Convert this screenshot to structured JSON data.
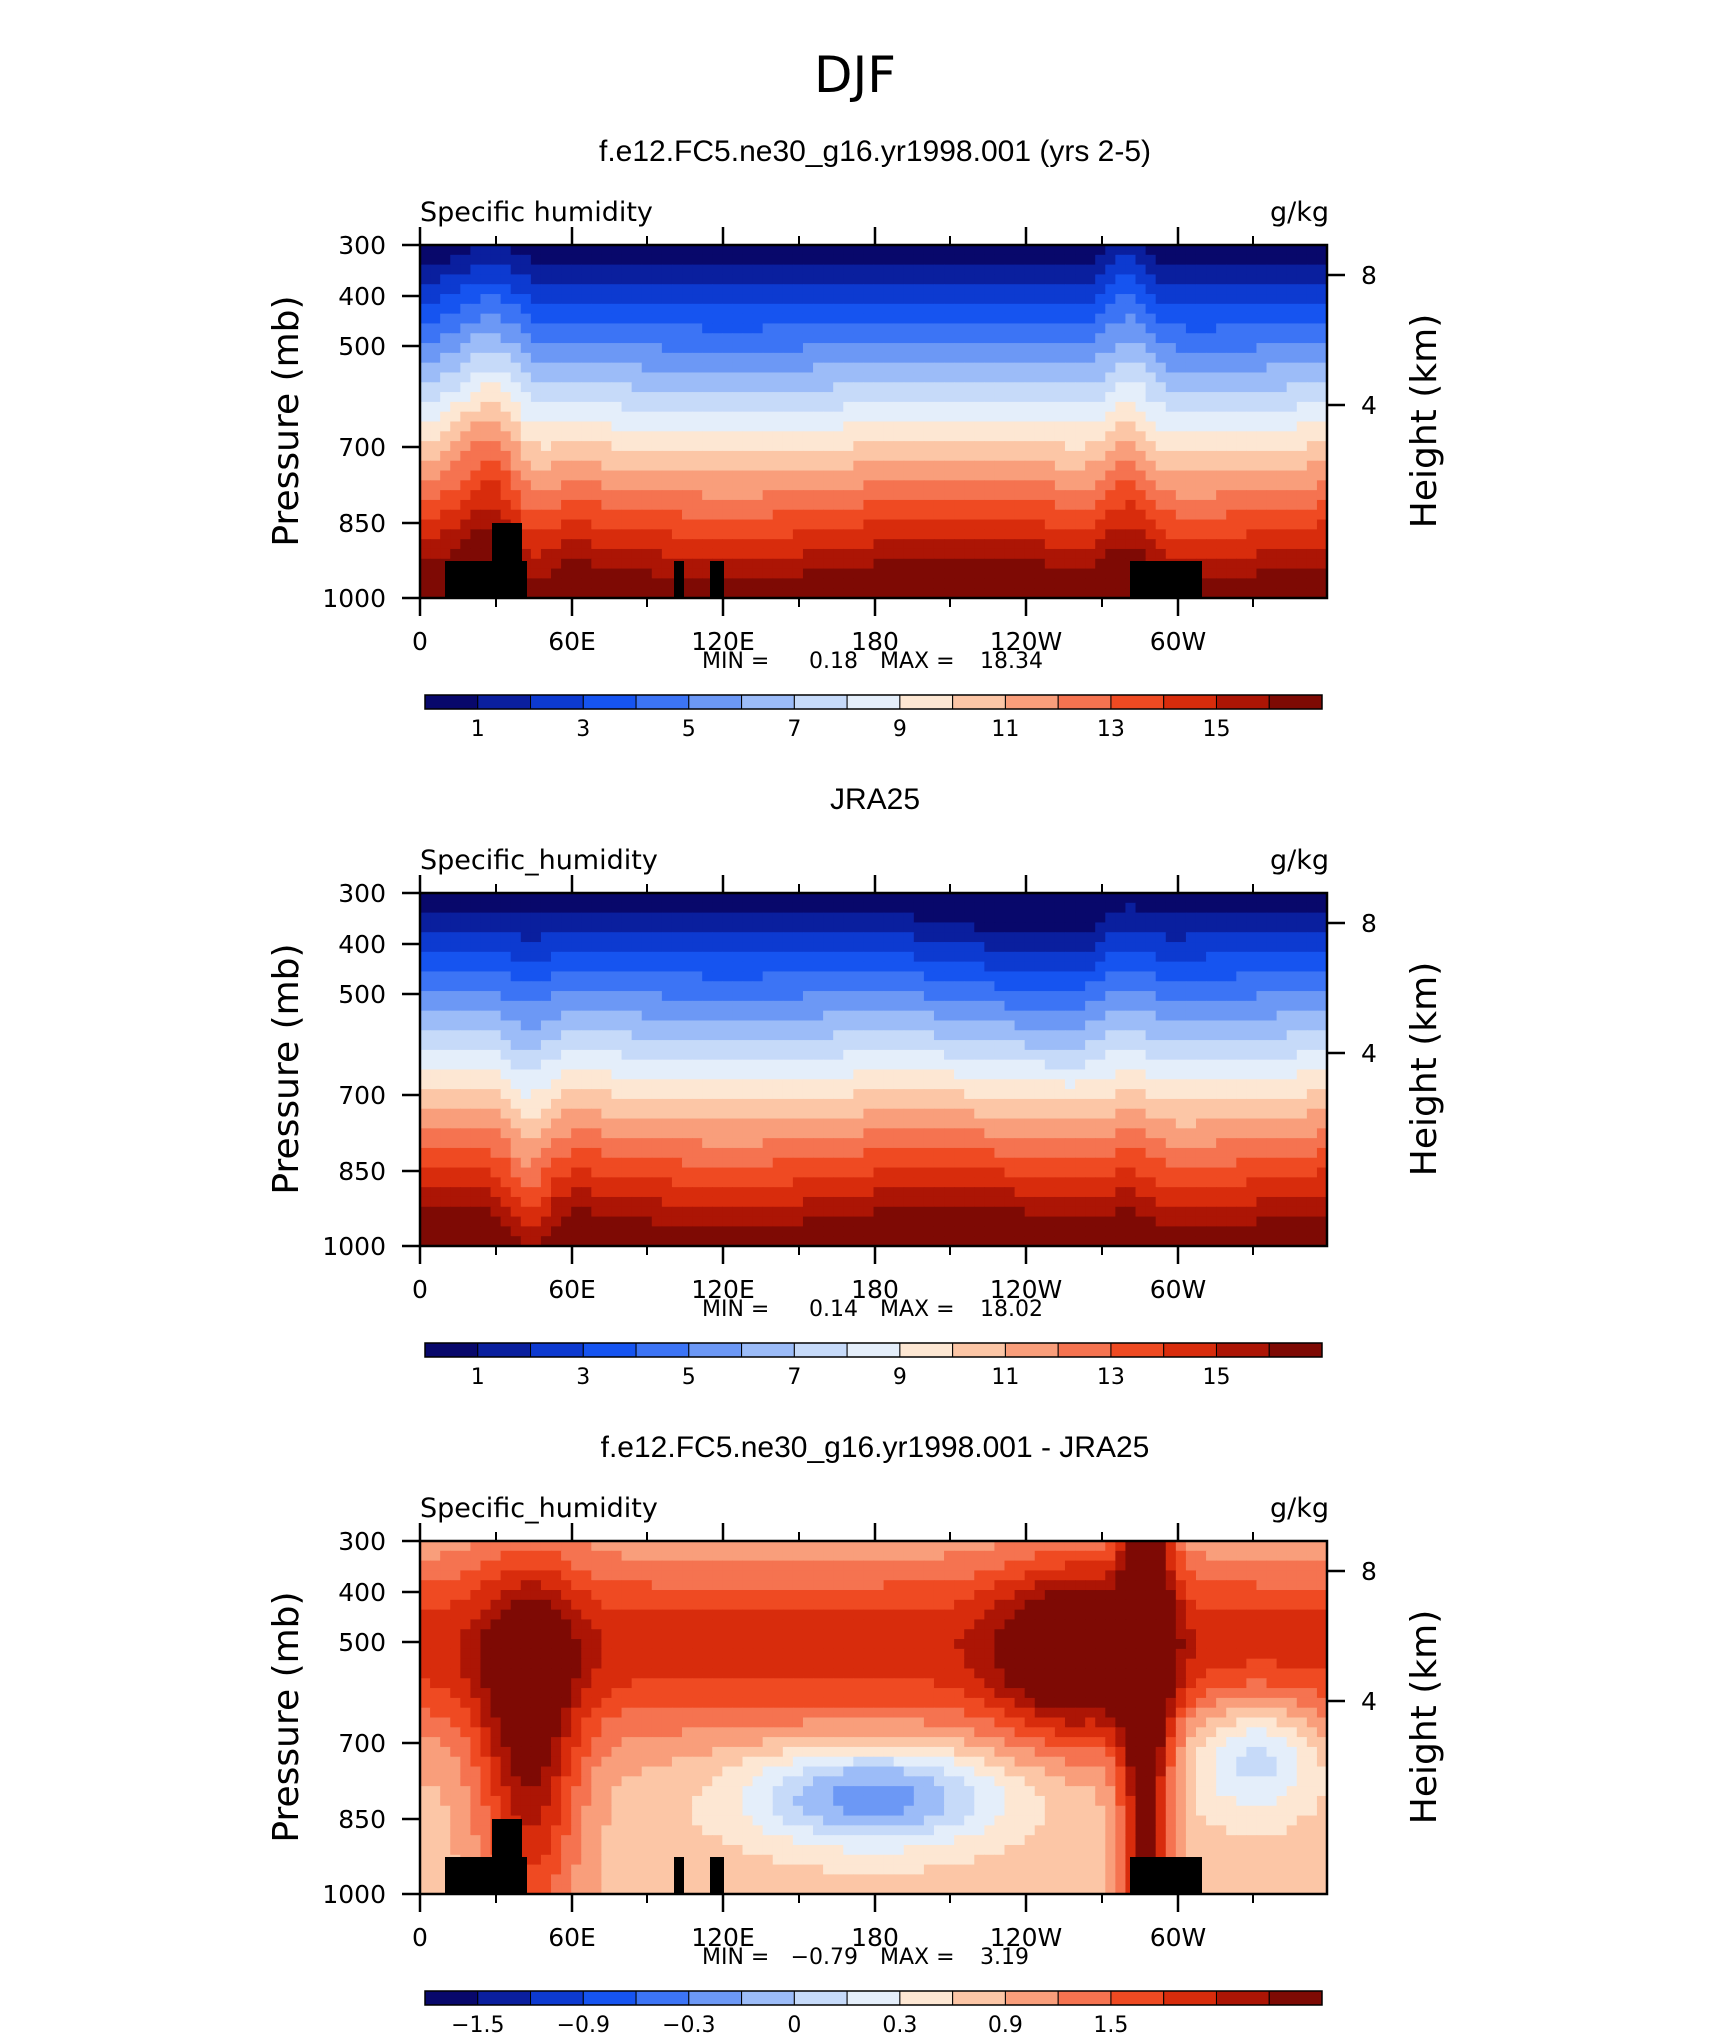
{
  "page_title": "DJF",
  "chart_data": [
    {
      "type": "heatmap",
      "title": "f.e12.FC5.ne30_g16.yr1998.001 (yrs 2-5)",
      "left_string": "Specific humidity",
      "right_string": "g/kg",
      "ylabel": "Pressure (mb)",
      "ylabel_right": "Height (km)",
      "x_ticks": [
        "0",
        "60E",
        "120E",
        "180",
        "120W",
        "60W"
      ],
      "y_ticks": [
        "300",
        "400",
        "500",
        "700",
        "850",
        "1000"
      ],
      "y_right_ticks": [
        "8",
        "4"
      ],
      "xlim": [
        0,
        360
      ],
      "ylim": [
        1000,
        300
      ],
      "stats": {
        "min_label": "MIN =",
        "min": "0.18",
        "max_label": "MAX =",
        "max": "18.34"
      },
      "colorbar": {
        "colors": [
          "#08086b",
          "#0a1f9e",
          "#0d3ad0",
          "#1654f0",
          "#3c74f5",
          "#6c98f5",
          "#9cbcf8",
          "#c6daf9",
          "#e4eefa",
          "#fde7d3",
          "#fcc6a6",
          "#f99e7b",
          "#f57350",
          "#ef4a22",
          "#d82c0c",
          "#ac1505",
          "#7e0a04"
        ],
        "labels": [
          "1",
          "3",
          "5",
          "7",
          "9",
          "11",
          "13",
          "15"
        ]
      }
    },
    {
      "type": "heatmap",
      "title": "JRA25",
      "left_string": "Specific_humidity",
      "right_string": "g/kg",
      "ylabel": "Pressure (mb)",
      "ylabel_right": "Height (km)",
      "x_ticks": [
        "0",
        "60E",
        "120E",
        "180",
        "120W",
        "60W"
      ],
      "y_ticks": [
        "300",
        "400",
        "500",
        "700",
        "850",
        "1000"
      ],
      "y_right_ticks": [
        "8",
        "4"
      ],
      "xlim": [
        0,
        360
      ],
      "ylim": [
        1000,
        300
      ],
      "stats": {
        "min_label": "MIN =",
        "min": "0.14",
        "max_label": "MAX =",
        "max": "18.02"
      },
      "colorbar": {
        "colors": [
          "#08086b",
          "#0a1f9e",
          "#0d3ad0",
          "#1654f0",
          "#3c74f5",
          "#6c98f5",
          "#9cbcf8",
          "#c6daf9",
          "#e4eefa",
          "#fde7d3",
          "#fcc6a6",
          "#f99e7b",
          "#f57350",
          "#ef4a22",
          "#d82c0c",
          "#ac1505",
          "#7e0a04"
        ],
        "labels": [
          "1",
          "3",
          "5",
          "7",
          "9",
          "11",
          "13",
          "15"
        ]
      }
    },
    {
      "type": "heatmap",
      "title": "f.e12.FC5.ne30_g16.yr1998.001 - JRA25",
      "left_string": "Specific_humidity",
      "right_string": "g/kg",
      "ylabel": "Pressure (mb)",
      "ylabel_right": "Height (km)",
      "x_ticks": [
        "0",
        "60E",
        "120E",
        "180",
        "120W",
        "60W"
      ],
      "y_ticks": [
        "300",
        "400",
        "500",
        "700",
        "850",
        "1000"
      ],
      "y_right_ticks": [
        "8",
        "4"
      ],
      "xlim": [
        0,
        360
      ],
      "ylim": [
        1000,
        300
      ],
      "stats": {
        "min_label": "MIN =",
        "min": "−0.79",
        "max_label": "MAX =",
        "max": "3.19"
      },
      "colorbar": {
        "colors": [
          "#08086b",
          "#0a1f9e",
          "#0d3ad0",
          "#1654f0",
          "#3c74f5",
          "#6c98f5",
          "#9cbcf8",
          "#c6daf9",
          "#e4eefa",
          "#fde7d3",
          "#fcc6a6",
          "#f99e7b",
          "#f57350",
          "#ef4a22",
          "#d82c0c",
          "#ac1505",
          "#7e0a04"
        ],
        "labels": [
          "−1.5",
          "−0.9",
          "−0.3",
          "0",
          "0.3",
          "0.9",
          "1.5"
        ]
      }
    }
  ]
}
